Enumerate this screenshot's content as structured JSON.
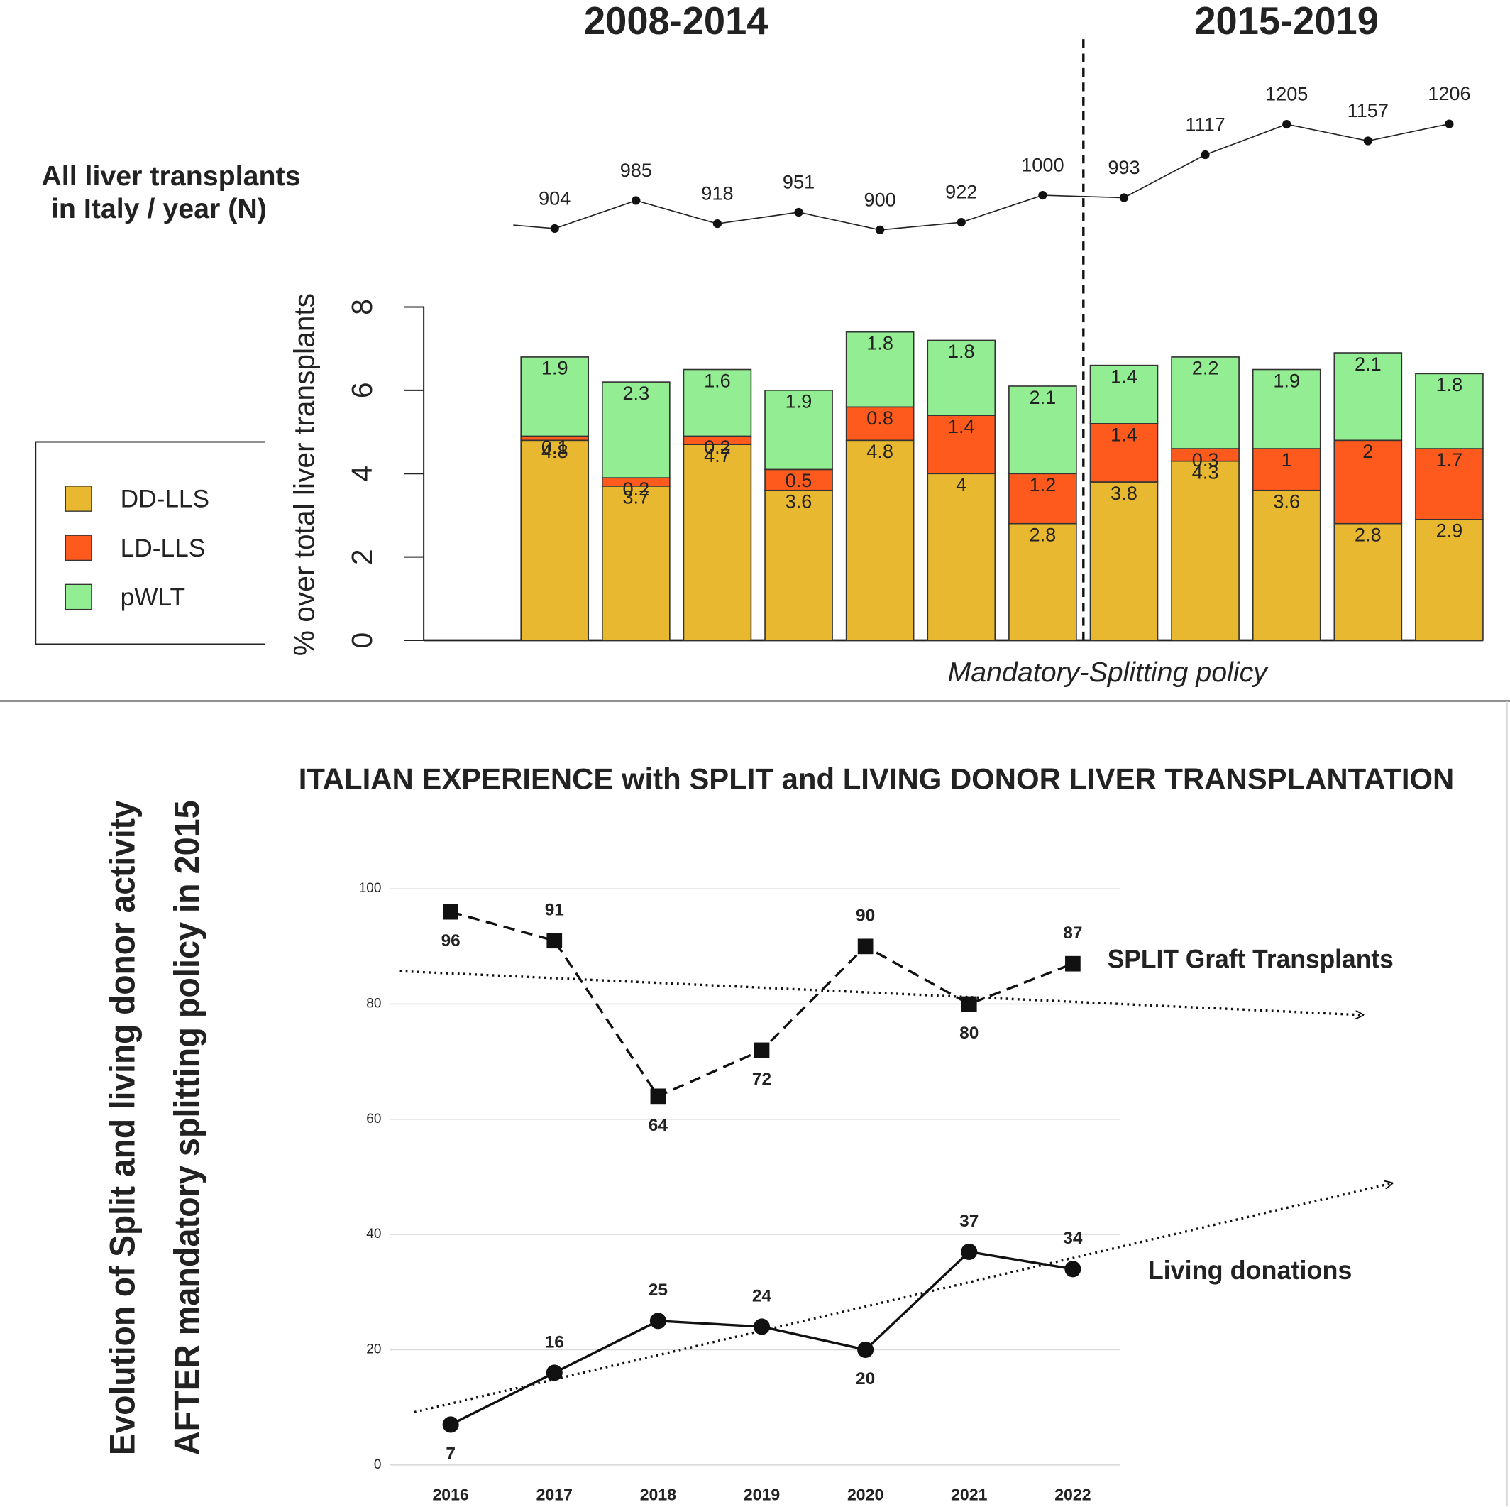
{
  "chart_data": [
    {
      "type": "bar",
      "stacked": true,
      "period_labels": [
        "2008-2014",
        "2015-2019"
      ],
      "annotation": "Mandatory-Splitting policy",
      "line_label": [
        "All liver transplants",
        "in Italy / year (N)"
      ],
      "y_label": "% over total liver transplants",
      "categories": [
        null,
        null,
        null,
        null,
        null,
        null,
        null,
        null,
        null,
        null,
        null,
        null
      ],
      "line_values": [
        904,
        985,
        918,
        951,
        900,
        922,
        1000,
        993,
        1117,
        1205,
        1157,
        1206
      ],
      "series": [
        {
          "name": "DD-LLS",
          "color": "#e8b830",
          "values": [
            4.8,
            3.7,
            4.7,
            3.6,
            4.8,
            4,
            2.8,
            3.8,
            4.3,
            3.6,
            2.8,
            2.9
          ]
        },
        {
          "name": "LD-LLS",
          "color": "#ff5a1e",
          "values": [
            0.1,
            0.2,
            0.2,
            0.5,
            0.8,
            1.4,
            1.2,
            1.4,
            0.3,
            1,
            2,
            1.7
          ]
        },
        {
          "name": "pWLT",
          "color": "#93ee93",
          "values": [
            1.9,
            2.3,
            1.6,
            1.9,
            1.8,
            1.8,
            2.1,
            1.4,
            2.2,
            1.9,
            2.1,
            1.8
          ]
        }
      ],
      "ylim": [
        0,
        8
      ],
      "yticks": [
        0,
        2,
        4,
        6,
        8
      ],
      "legend": "left"
    },
    {
      "type": "line",
      "title": "ITALIAN EXPERIENCE with SPLIT and LIVING DONOR LIVER TRANSPLANTATION",
      "y_label": [
        "Evolution of Split and living donor activity",
        "AFTER  mandatory splitting policy in 2015"
      ],
      "categories": [
        "2016",
        "2017",
        "2018",
        "2019",
        "2020",
        "2021",
        "2022"
      ],
      "series": [
        {
          "name": "SPLIT Graft Transplants",
          "color": "#111111",
          "marker": "square",
          "dash": true,
          "values": [
            96,
            91,
            64,
            72,
            90,
            80,
            87
          ]
        },
        {
          "name": "Living donations",
          "color": "#111111",
          "marker": "circle",
          "dash": false,
          "values": [
            7,
            16,
            25,
            24,
            20,
            37,
            34
          ]
        }
      ],
      "ylim": [
        0,
        100
      ],
      "yticks": [
        0,
        20,
        40,
        60,
        80,
        100
      ],
      "grid": true,
      "trendline": true
    }
  ]
}
